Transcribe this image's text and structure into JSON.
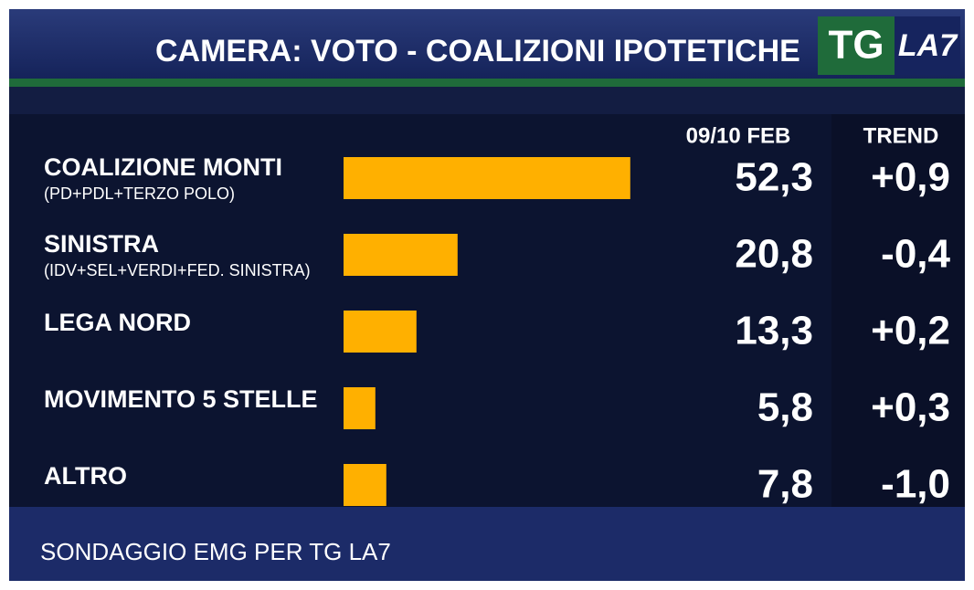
{
  "chart_data": {
    "type": "bar",
    "orientation": "horizontal",
    "title": "CAMERA: VOTO - COALIZIONI IPOTETICHE",
    "logo": {
      "tg": "TG",
      "la7": "LA7"
    },
    "categories": [
      "COALIZIONE MONTI",
      "SINISTRA",
      "LEGA NORD",
      "MOVIMENTO 5 STELLE",
      "ALTRO"
    ],
    "category_notes": [
      "(PD+PDL+TERZO POLO)",
      "(IDV+SEL+VERDI+FED. SINISTRA)",
      null,
      null,
      null
    ],
    "series": [
      {
        "name": "09/10 FEB",
        "color": "#ffb000",
        "values": [
          52.3,
          20.8,
          13.3,
          5.8,
          7.8
        ],
        "value_labels": [
          "52,3",
          "20,8",
          "13,3",
          "5,8",
          "7,8"
        ]
      },
      {
        "name": "TREND",
        "values": [
          0.9,
          -0.4,
          0.2,
          0.3,
          -1.0
        ],
        "value_labels": [
          "+0,9",
          "-0,4",
          "+0,2",
          "+0,3",
          "-1,0"
        ]
      }
    ],
    "source": "SONDAGGIO EMG PER TG LA7"
  }
}
